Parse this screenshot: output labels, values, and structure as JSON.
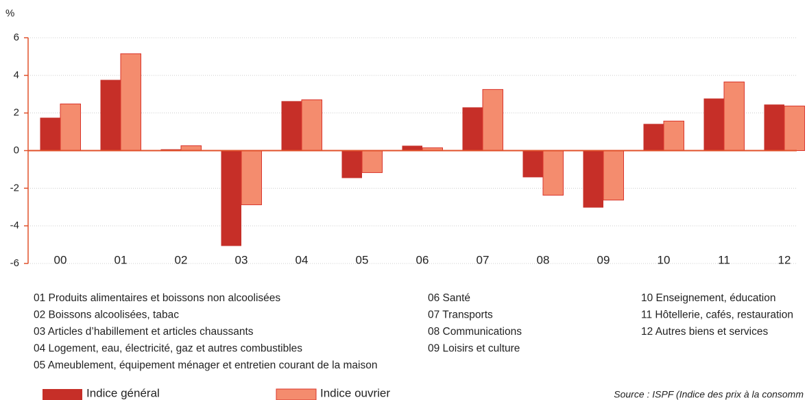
{
  "chart_data": {
    "type": "bar",
    "y_label": "%",
    "categories": [
      "00",
      "01",
      "02",
      "03",
      "04",
      "05",
      "06",
      "07",
      "08",
      "09",
      "10",
      "11",
      "12"
    ],
    "series": [
      {
        "name": "Indice général",
        "color": "#c62f28",
        "values": [
          1.75,
          3.76,
          0.07,
          -5.07,
          2.63,
          -1.46,
          0.26,
          2.3,
          -1.42,
          -3.03,
          1.42,
          2.77,
          2.45
        ]
      },
      {
        "name": "Indice ouvrier",
        "color": "#f48c6e",
        "values": [
          2.48,
          5.15,
          0.26,
          -2.88,
          2.7,
          -1.17,
          0.15,
          3.25,
          -2.37,
          -2.63,
          1.57,
          3.65,
          2.37
        ]
      }
    ],
    "ylim": [
      -6,
      6
    ],
    "yticks": [
      -6,
      -4,
      -2,
      0,
      2,
      4,
      6
    ],
    "grid": true,
    "notes": [
      [
        "01 Produits alimentaires et boissons non alcoolisées",
        "02 Boissons alcoolisées, tabac",
        "03 Articles d’habillement et articles chaussants",
        "04 Logement, eau, électricité, gaz et autres combustibles",
        "05 Ameublement, équipement ménager et entretien courant de la maison"
      ],
      [
        "06 Santé",
        "07 Transports",
        "08 Communications",
        "09 Loisirs et culture"
      ],
      [
        "10 Enseignement, éducation",
        "11 Hôtellerie, cafés, restauration",
        "12 Autres biens et services"
      ]
    ],
    "source": "Source : ISPF (Indice des prix à la consomm"
  }
}
